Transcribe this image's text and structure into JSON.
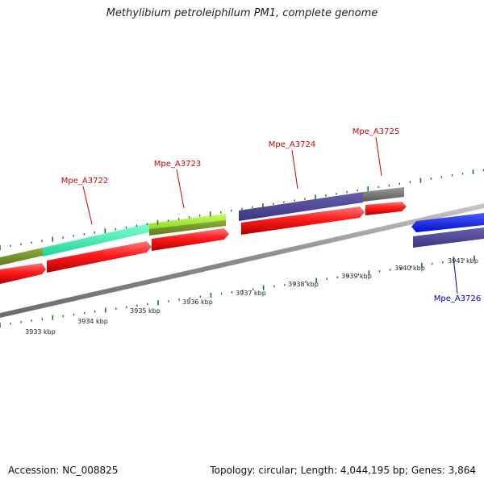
{
  "title": "Methylibium petroleiphilum PM1, complete genome",
  "footer": {
    "accession": "Accession: NC_008825",
    "summary": "Topology: circular; Length: 4,044,195 bp; Genes: 3,864"
  },
  "genes": {
    "g1": "Mpe_A3722",
    "g2": "Mpe_A3723",
    "g3": "Mpe_A3724",
    "g4": "Mpe_A3725",
    "g5": "Mpe_A3726"
  },
  "ticks": {
    "t3933": "3933 kbp",
    "t3934": "3934 kbp",
    "t3935": "3935 kbp",
    "t3936": "3936 kbp",
    "t3937": "3937 kbp",
    "t3938": "3938 kbp",
    "t3939": "3939 kbp",
    "t3940": "3940 kbp",
    "t3941": "3941 kbp"
  },
  "colors": {
    "forward_label": "#cc0000",
    "reverse_label": "#0000cc",
    "cds": "#ff1a1a",
    "backbone": "#888888",
    "tick": "#1a7a1a"
  }
}
